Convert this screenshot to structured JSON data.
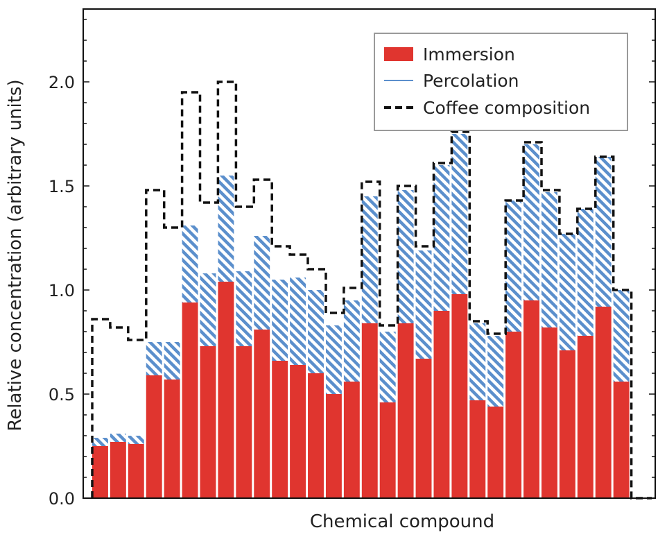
{
  "chart_data": {
    "type": "bar",
    "title": "",
    "xlabel": "Chemical compound",
    "ylabel": "Relative concentration (arbitrary units)",
    "ylim": [
      0,
      2.35
    ],
    "yticks": [
      "0.0",
      "0.5",
      "1.0",
      "1.5",
      "2.0"
    ],
    "legend_position": "top-right",
    "colors": {
      "immersion": "#e0352f",
      "percolation": "#5b8fcc",
      "coffee": "#111111"
    },
    "series": [
      {
        "name": "Immersion",
        "style": "bar",
        "values": [
          0.25,
          0.27,
          0.26,
          0.59,
          0.57,
          0.94,
          0.73,
          1.04,
          0.73,
          0.81,
          0.66,
          0.64,
          0.6,
          0.5,
          0.56,
          0.84,
          0.46,
          0.84,
          0.67,
          0.9,
          0.98,
          0.47,
          0.44,
          0.8,
          0.95,
          0.82,
          0.71,
          0.78,
          0.92,
          0.56
        ]
      },
      {
        "name": "Percolation",
        "style": "hatched-bar",
        "values": [
          0.29,
          0.31,
          0.3,
          0.75,
          0.75,
          1.31,
          1.08,
          1.55,
          1.09,
          1.26,
          1.05,
          1.06,
          1.0,
          0.83,
          0.95,
          1.45,
          0.8,
          1.48,
          1.19,
          1.6,
          1.75,
          0.84,
          0.78,
          1.43,
          1.7,
          1.47,
          1.27,
          1.39,
          1.64,
          1.0
        ]
      },
      {
        "name": "Coffee composition",
        "style": "dashed-step",
        "values": [
          0.86,
          0.82,
          0.76,
          1.48,
          1.3,
          1.95,
          1.42,
          2.0,
          1.4,
          1.53,
          1.21,
          1.17,
          1.1,
          0.89,
          1.01,
          1.52,
          0.83,
          1.5,
          1.21,
          1.61,
          1.76,
          0.85,
          0.79,
          1.43,
          1.71,
          1.48,
          1.27,
          1.39,
          1.64,
          1.0
        ]
      }
    ]
  }
}
